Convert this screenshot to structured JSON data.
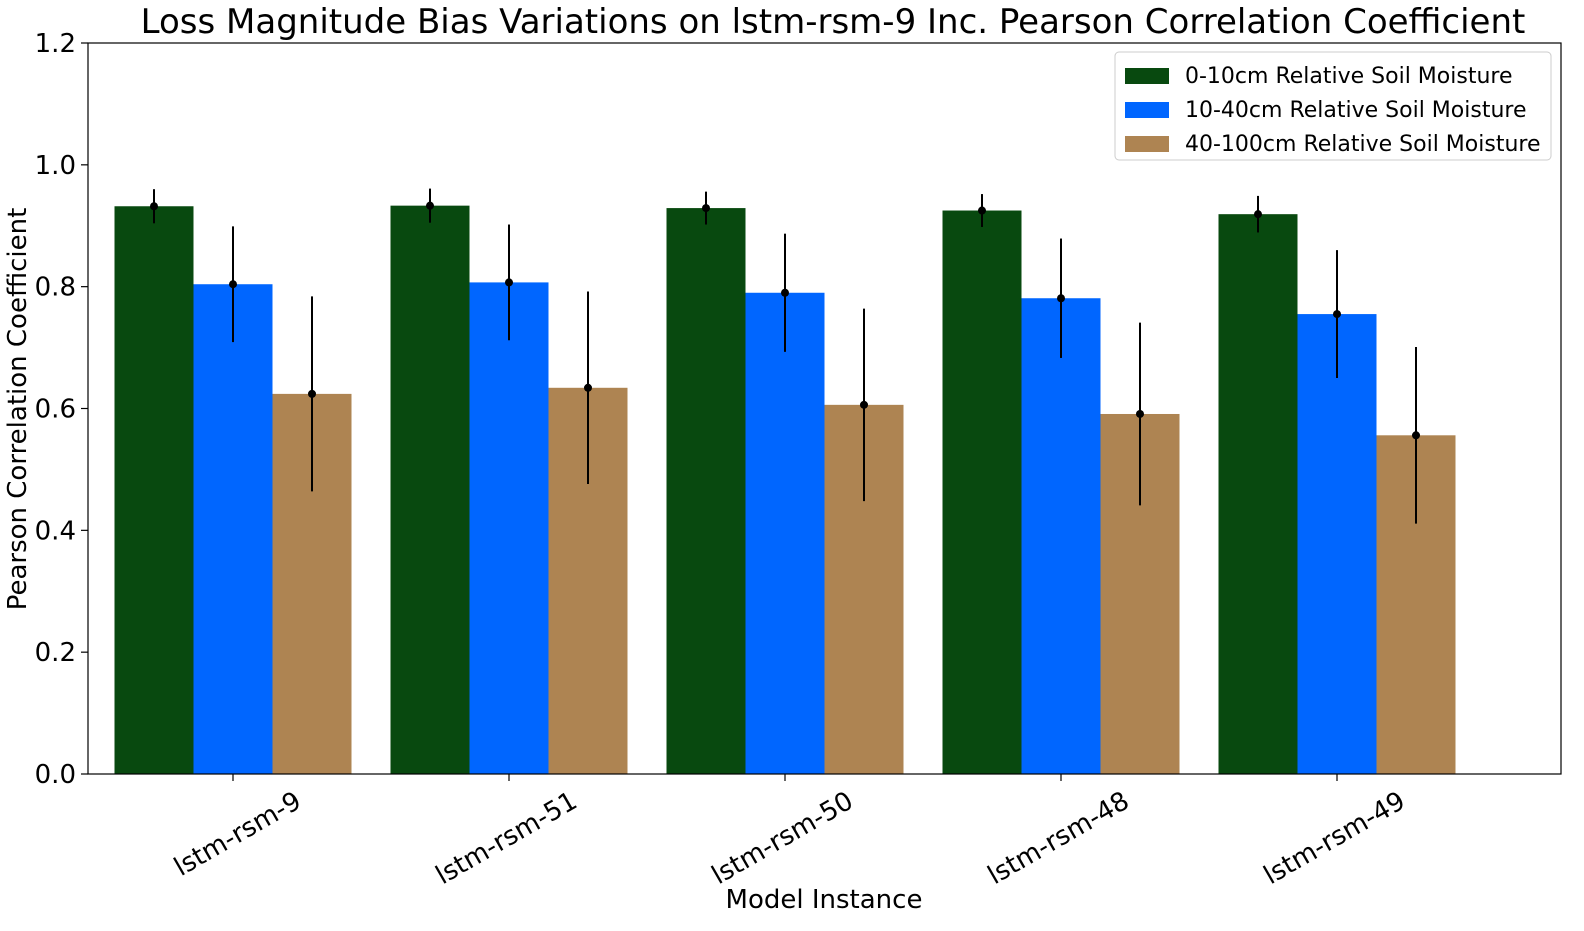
{
  "chart_data": {
    "type": "bar",
    "title": "Loss Magnitude Bias Variations on lstm-rsm-9 Inc. Pearson Correlation Coefficient",
    "xlabel": "Model Instance",
    "ylabel": "Pearson Correlation Coefficient",
    "ylim": [
      0,
      1.2
    ],
    "yticks": [
      "0.0",
      "0.2",
      "0.4",
      "0.6",
      "0.8",
      "1.0",
      "1.2"
    ],
    "categories": [
      "lstm-rsm-9",
      "lstm-rsm-51",
      "lstm-rsm-50",
      "lstm-rsm-48",
      "lstm-rsm-49"
    ],
    "series": [
      {
        "name": "0-10cm Relative Soil Moisture",
        "color": "#08490f",
        "values": [
          0.932,
          0.933,
          0.929,
          0.925,
          0.919
        ],
        "error": [
          0.028,
          0.028,
          0.027,
          0.027,
          0.03
        ]
      },
      {
        "name": "10-40cm Relative Soil Moisture",
        "color": "#0066ff",
        "values": [
          0.804,
          0.807,
          0.79,
          0.781,
          0.755
        ],
        "error": [
          0.095,
          0.095,
          0.097,
          0.098,
          0.105
        ]
      },
      {
        "name": "40-100cm Relative Soil Moisture",
        "color": "#ae8452",
        "values": [
          0.624,
          0.634,
          0.606,
          0.591,
          0.556
        ],
        "error": [
          0.16,
          0.158,
          0.158,
          0.15,
          0.145
        ]
      }
    ],
    "grid": false,
    "legend_position": "top-right"
  }
}
